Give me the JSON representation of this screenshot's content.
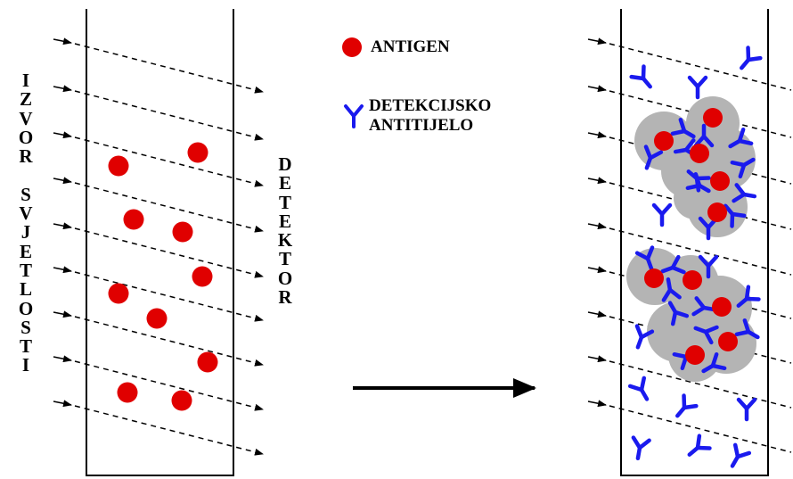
{
  "legend": {
    "antigen_label": "ANTIGEN",
    "antibody_label_line1": "DETEKCIJSKO",
    "antibody_label_line2": "ANTITIJELO"
  },
  "left_label_line1": [
    "I",
    "Z",
    "V",
    "O",
    "R"
  ],
  "left_label_line2": [
    "S",
    "V",
    "J",
    "E",
    "T",
    "L",
    "O",
    "S",
    "T",
    "I"
  ],
  "right_label": [
    "D",
    "E",
    "T",
    "E",
    "K",
    "T",
    "O",
    "R"
  ],
  "colors": {
    "antigen": "#e00000",
    "antibody": "#1a1aee",
    "cluster": "#b4b4b4",
    "outline": "#000000"
  },
  "icons": {
    "antigen": "red-dot-icon",
    "antibody": "y-shape-icon",
    "process": "right-arrow-icon"
  }
}
